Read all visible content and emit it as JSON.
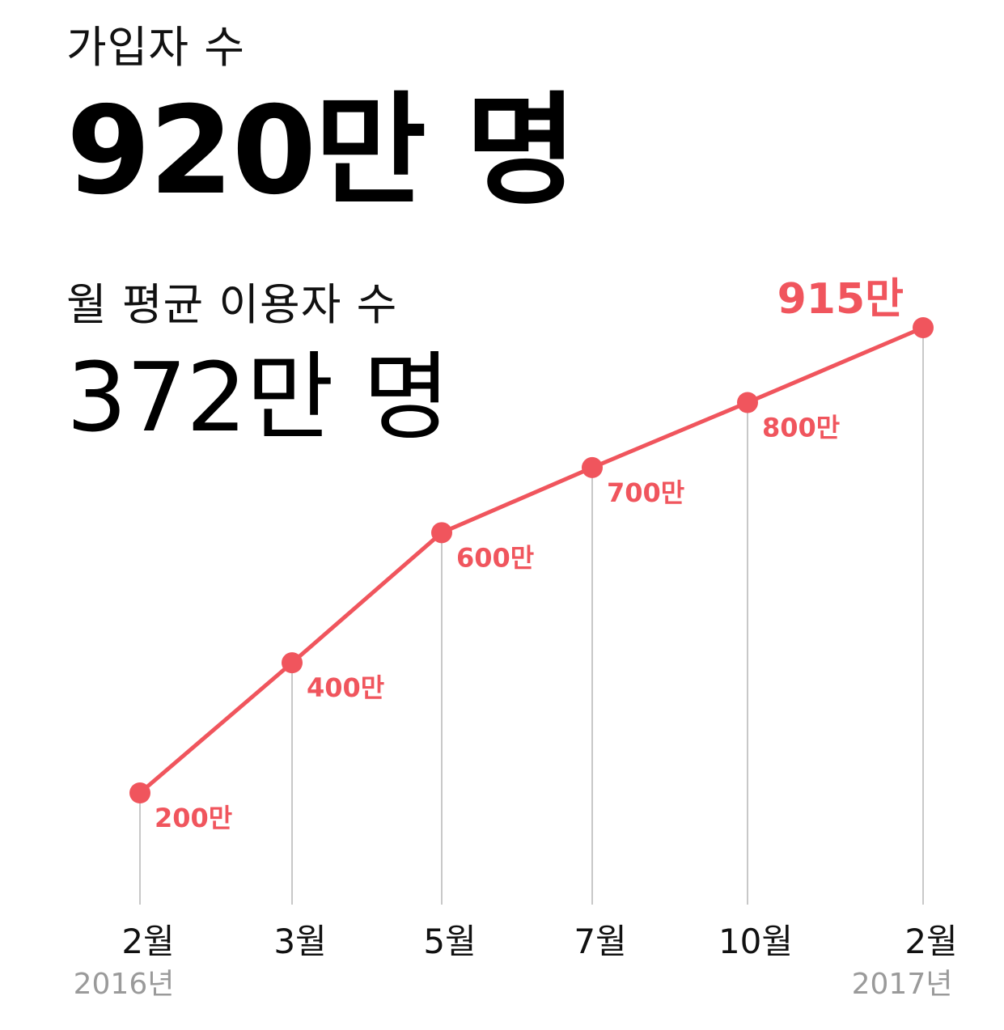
{
  "headline": {
    "signup_label": "가입자 수",
    "signup_value": "920만 명",
    "mau_label": "월 평균 이용자 수",
    "mau_value": "372만 명"
  },
  "chart_data": {
    "type": "line",
    "categories": [
      "2월",
      "3월",
      "5월",
      "7월",
      "10월",
      "2월"
    ],
    "year_labels": [
      "2016년",
      "",
      "",
      "",
      "",
      "2017년"
    ],
    "values": [
      200,
      400,
      600,
      700,
      800,
      915
    ],
    "value_labels": [
      "200만",
      "400만",
      "600만",
      "700만",
      "800만",
      "915만"
    ],
    "unit": "만",
    "grid": false,
    "colors": {
      "line": "#f0555d",
      "label": "#f0555d",
      "drop_line": "#c8c8c8",
      "year_text": "#9a9a9a",
      "month_text": "#111111"
    }
  }
}
